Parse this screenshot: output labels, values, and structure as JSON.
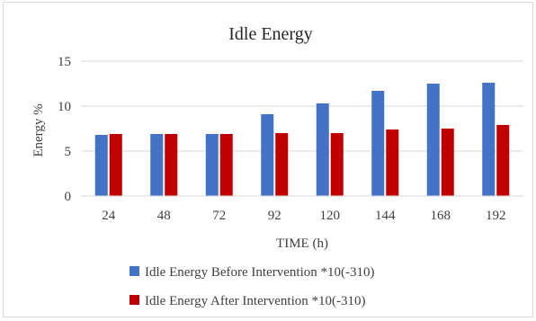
{
  "chart_data": {
    "type": "bar",
    "title": "Idle Energy",
    "xlabel": "TIME (h)",
    "ylabel": "Energy %",
    "categories": [
      "24",
      "48",
      "72",
      "92",
      "120",
      "144",
      "168",
      "192"
    ],
    "ylim": [
      0,
      15
    ],
    "yticks": [
      0,
      5,
      10,
      15
    ],
    "grid": true,
    "legend_position": "bottom",
    "series": [
      {
        "name": "Idle Energy Before Intervention *10(-310)",
        "color": "#4472c4",
        "values": [
          6.8,
          6.9,
          6.9,
          9.1,
          10.3,
          11.7,
          12.5,
          12.6
        ]
      },
      {
        "name": "Idle Energy After Intervention *10(-310)",
        "color": "#c00000",
        "values": [
          6.9,
          6.9,
          6.9,
          7.0,
          7.0,
          7.4,
          7.5,
          7.9
        ]
      }
    ]
  }
}
